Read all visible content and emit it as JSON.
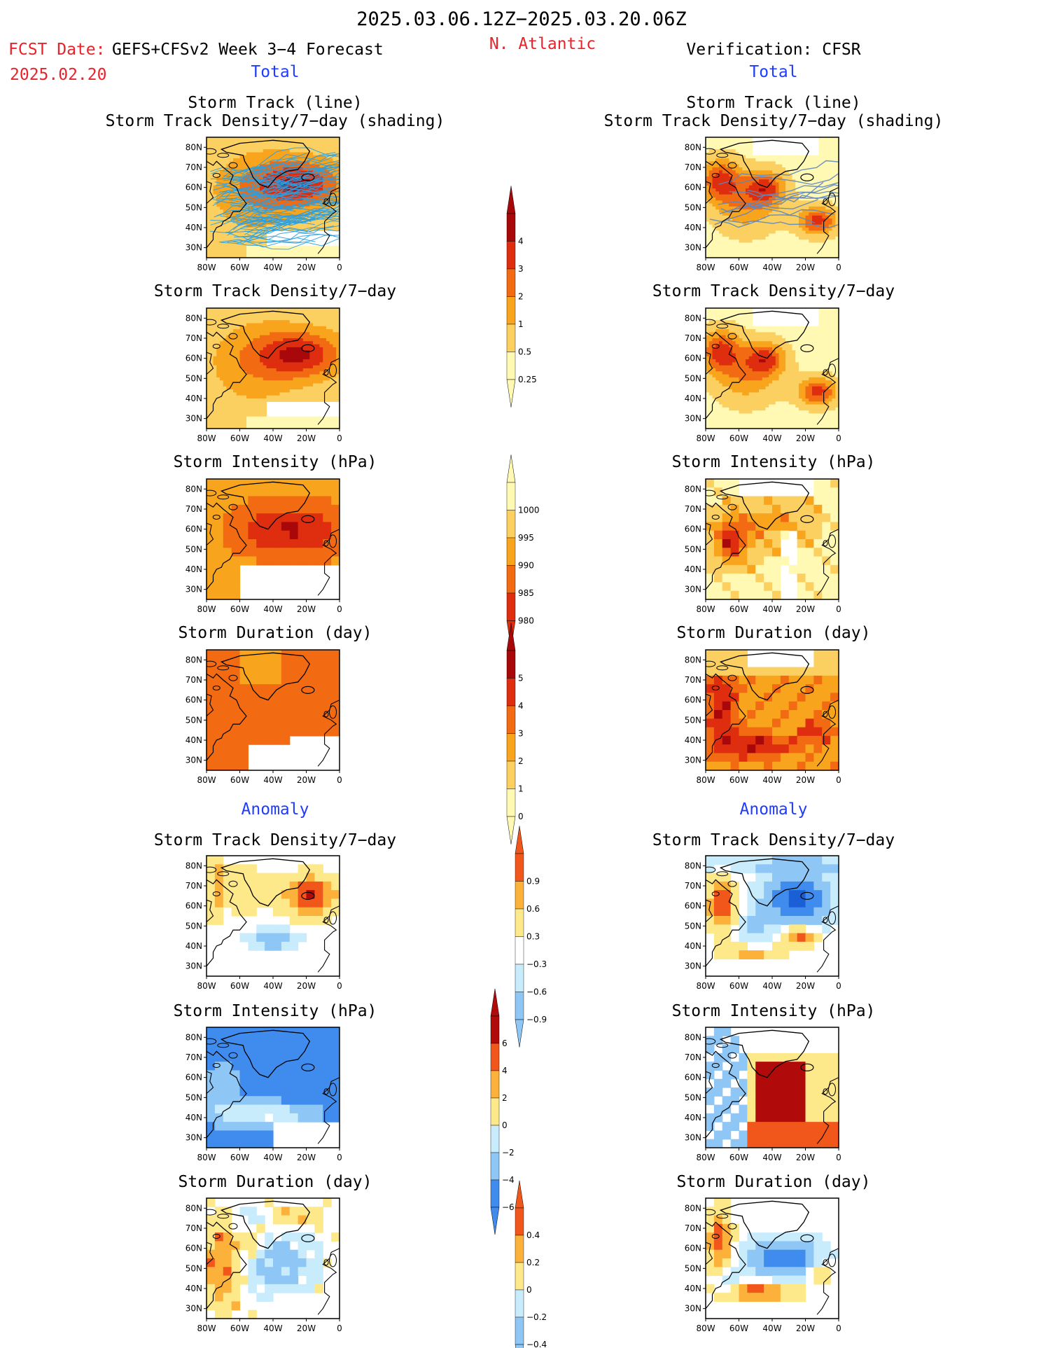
{
  "header": {
    "date_range": "2025.03.06.12Z−2025.03.20.06Z",
    "fcst_prefix": "FCST Date:",
    "fcst_model": "GEFS+CFSv2 Week 3−4 Forecast",
    "fcst_date": "2025.02.20",
    "region": "N. Atlantic",
    "verification": "Verification: CFSR",
    "total_left": "Total",
    "total_right": "Total",
    "anomaly_left": "Anomaly",
    "anomaly_right": "Anomaly"
  },
  "panel_titles": {
    "track_line": "Storm Track (line)",
    "track_density_shading": "Storm Track Density/7−day (shading)",
    "track_density": "Storm Track Density/7−day",
    "intensity": "Storm Intensity (hPa)",
    "duration": "Storm Duration (day)"
  },
  "axes": {
    "lon_labels": [
      "80W",
      "60W",
      "40W",
      "20W",
      "0"
    ],
    "lat_labels": [
      "80N",
      "70N",
      "60N",
      "50N",
      "40N",
      "30N"
    ]
  },
  "colorbars": {
    "density_total": [
      "4",
      "3",
      "2",
      "1",
      "0.5",
      "0.25"
    ],
    "intensity_total": [
      "1000",
      "995",
      "990",
      "985",
      "980"
    ],
    "duration_total": [
      "5",
      "4",
      "3",
      "2",
      "1",
      "0"
    ],
    "density_anom": [
      "0.9",
      "0.6",
      "0.3",
      "−0.3",
      "−0.6",
      "−0.9"
    ],
    "intensity_anom": [
      "6",
      "4",
      "2",
      "0",
      "−2",
      "−4",
      "−6"
    ],
    "duration_anom": [
      "0.4",
      "0.2",
      "0",
      "−0.2",
      "−0.4"
    ]
  },
  "colors": {
    "seq": [
      "#fff9b3",
      "#fbd060",
      "#f8a41c",
      "#f26a12",
      "#de2d0f",
      "#a8080a"
    ],
    "div": [
      "#1b5fd6",
      "#3f8cee",
      "#8ec6f6",
      "#c9ecfd",
      "#ffffff",
      "#fde88a",
      "#fbb13a",
      "#f1561a",
      "#b00a0a"
    ],
    "track_line_fcst": "#2a9fe0",
    "track_line_obs": "#5f86bd"
  }
}
